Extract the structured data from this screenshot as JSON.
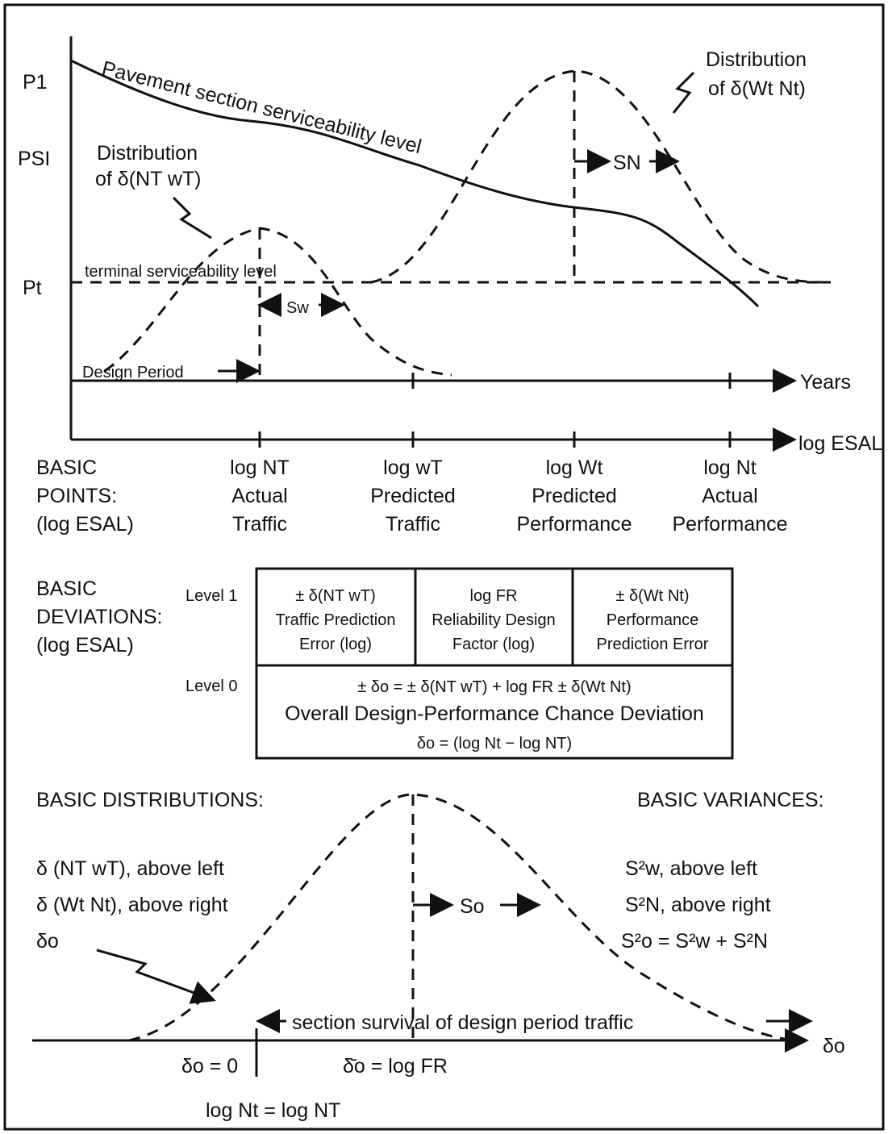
{
  "top_graph": {
    "p1": "P1",
    "psi": "PSI",
    "pt": "Pt",
    "curve_label": "Pavement section serviceability level",
    "dist_right": [
      "Distribution",
      "of δ(Wt Nt)"
    ],
    "dist_left": [
      "Distribution",
      "of δ(NT wT)"
    ],
    "terminal": "terminal serviceability level",
    "sn": "SN",
    "sw": "Sw",
    "design_period": "Design Period",
    "years": "Years",
    "log_esal": "log ESAL"
  },
  "basic_points": {
    "heading": [
      "BASIC",
      "POINTS:",
      "(log ESAL)"
    ],
    "columns": [
      [
        "log NT",
        "Actual",
        "Traffic"
      ],
      [
        "log wT",
        "Predicted",
        "Traffic"
      ],
      [
        "log Wt",
        "Predicted",
        "Performance"
      ],
      [
        "log Nt",
        "Actual",
        "Performance"
      ]
    ]
  },
  "basic_deviations": {
    "heading": [
      "BASIC",
      "DEVIATIONS:",
      "(log ESAL)"
    ],
    "level1": "Level 1",
    "level0": "Level 0",
    "level1_cells": [
      [
        "± δ(NT wT)",
        "Traffic Prediction",
        "Error (log)"
      ],
      [
        "log FR",
        "Reliability Design",
        "Factor (log)"
      ],
      [
        "± δ(Wt Nt)",
        "Performance",
        "Prediction Error"
      ]
    ],
    "level0_lines": [
      "± δo = ± δ(NT wT) + log FR ± δ(Wt Nt)",
      "Overall Design-Performance Chance Deviation",
      "δo = (log Nt − log NT)"
    ]
  },
  "bottom": {
    "distributions": "BASIC DISTRIBUTIONS:",
    "variances": "BASIC VARIANCES:",
    "left_notes": [
      "δ (NT wT), above left",
      "δ (Wt Nt), above right",
      "δo"
    ],
    "right_notes": [
      "S²w, above left",
      "S²N, above right",
      "S²o = S²w + S²N"
    ],
    "so": "So",
    "survival": "section survival of design period traffic",
    "axis": "δo",
    "zero": "δo = 0",
    "mean": "δ̄o = log FR",
    "equal": "log Nt = log NT"
  }
}
